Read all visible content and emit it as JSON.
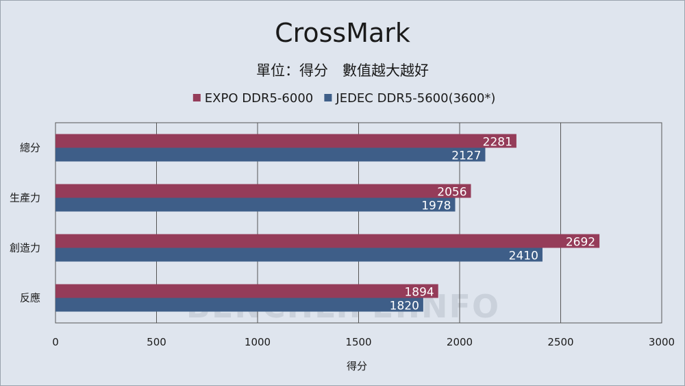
{
  "chart_data": {
    "type": "bar",
    "orientation": "horizontal",
    "title": "CrossMark",
    "subtitle": "單位：得分　數值越大越好",
    "xlabel": "得分",
    "ylabel": "",
    "categories": [
      "總分",
      "生產力",
      "創造力",
      "反應"
    ],
    "series": [
      {
        "name": "EXPO DDR5-6000",
        "color": "#953c59",
        "values": [
          2281,
          2056,
          2692,
          1894
        ]
      },
      {
        "name": "JEDEC DDR5-5600(3600*)",
        "color": "#3e5e88",
        "values": [
          2127,
          1978,
          2410,
          1820
        ]
      }
    ],
    "xlim": [
      0,
      3000
    ],
    "xticks": [
      "0",
      "500",
      "1000",
      "1500",
      "2000",
      "2500",
      "3000"
    ],
    "grid": true,
    "legend_position": "top-center",
    "watermark": "BENCHLIFE.INFO"
  }
}
